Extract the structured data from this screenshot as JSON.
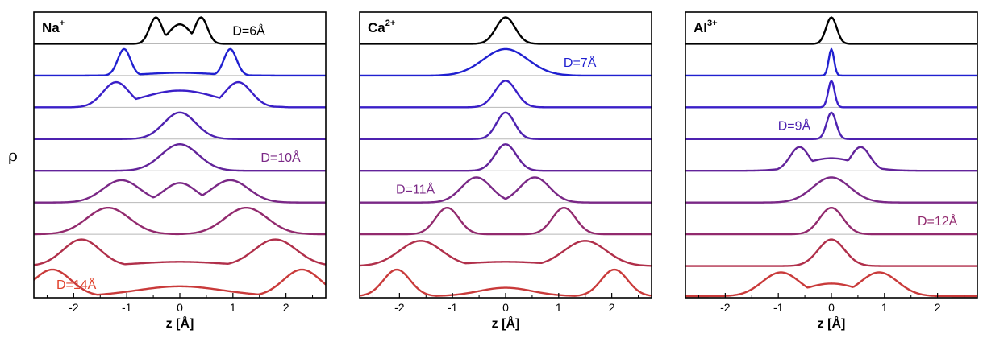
{
  "figure": {
    "ylabel": "ρ",
    "colors": [
      "#000000",
      "#2020d0",
      "#3a1fc8",
      "#4e22b0",
      "#62239a",
      "#7a2886",
      "#922a6e",
      "#b02f4a",
      "#c93a3a",
      "#e0402a"
    ]
  },
  "chart_data": [
    {
      "type": "line",
      "ion_base": "Na",
      "ion_sup": "+",
      "xlabel": "z [Å]",
      "xlim": [
        -2.75,
        2.75
      ],
      "xticks": [
        -2,
        -1,
        0,
        1,
        2
      ],
      "xtick_labels": [
        "-2",
        "-1",
        "0",
        "1",
        "2"
      ],
      "annotations": [
        {
          "text": "D=6Å",
          "row": 0,
          "x": 1.3,
          "color": "#000000"
        },
        {
          "text": "D=10Å",
          "row": 4,
          "x": 1.9,
          "color": "#7a2886"
        },
        {
          "text": "D=14Å",
          "row": 8,
          "x": -1.95,
          "color": "#e0402a"
        }
      ],
      "series": [
        {
          "peaks": [
            [
              -0.45,
              0.95,
              0.12
            ],
            [
              0.4,
              0.95,
              0.12
            ],
            [
              0,
              0.7,
              0.2
            ]
          ],
          "halfwidth": 0.8
        },
        {
          "peaks": [
            [
              -1.05,
              0.95,
              0.12
            ],
            [
              0.95,
              0.95,
              0.12
            ],
            [
              0,
              0.1,
              0.6
            ]
          ],
          "halfwidth": 1.6
        },
        {
          "peaks": [
            [
              -1.2,
              0.9,
              0.25
            ],
            [
              1.1,
              0.9,
              0.25
            ],
            [
              0,
              0.6,
              0.7
            ]
          ],
          "halfwidth": 1.9
        },
        {
          "peaks": [
            [
              0,
              0.95,
              0.3
            ]
          ],
          "halfwidth": 2.75
        },
        {
          "peaks": [
            [
              0,
              0.95,
              0.35
            ]
          ],
          "halfwidth": 2.75
        },
        {
          "peaks": [
            [
              -1.1,
              0.8,
              0.35
            ],
            [
              0,
              0.7,
              0.3
            ],
            [
              0.95,
              0.8,
              0.35
            ]
          ],
          "halfwidth": 2.75
        },
        {
          "peaks": [
            [
              -1.35,
              0.95,
              0.4
            ],
            [
              1.25,
              0.95,
              0.4
            ]
          ],
          "halfwidth": 2.75
        },
        {
          "peaks": [
            [
              -1.85,
              0.95,
              0.35
            ],
            [
              1.8,
              0.95,
              0.4
            ],
            [
              0,
              0.15,
              0.8
            ]
          ],
          "halfwidth": 2.75
        },
        {
          "peaks": [
            [
              -2.4,
              0.95,
              0.35
            ],
            [
              2.3,
              0.95,
              0.35
            ],
            [
              0,
              0.35,
              0.8
            ]
          ],
          "halfwidth": 2.75
        }
      ]
    },
    {
      "type": "line",
      "ion_base": "Ca",
      "ion_sup": "2+",
      "xlabel": "z [Å]",
      "xlim": [
        -2.75,
        2.75
      ],
      "xticks": [
        -2,
        -1,
        0,
        1,
        2
      ],
      "xtick_labels": [
        "-2",
        "-1",
        "0",
        "1",
        "2"
      ],
      "annotations": [
        {
          "text": "D=7Å",
          "row": 1,
          "x": 1.4,
          "color": "#2020d0"
        },
        {
          "text": "D=11Å",
          "row": 5,
          "x": -1.7,
          "color": "#7a2886"
        }
      ],
      "series": [
        {
          "peaks": [
            [
              0,
              0.95,
              0.18
            ]
          ],
          "halfwidth": 0.6
        },
        {
          "peaks": [
            [
              0,
              0.95,
              0.42
            ]
          ],
          "halfwidth": 1.2
        },
        {
          "peaks": [
            [
              0,
              0.95,
              0.2
            ]
          ],
          "halfwidth": 2.75
        },
        {
          "peaks": [
            [
              0,
              0.95,
              0.17
            ]
          ],
          "halfwidth": 2.75
        },
        {
          "peaks": [
            [
              0,
              0.95,
              0.2
            ]
          ],
          "halfwidth": 2.75
        },
        {
          "peaks": [
            [
              -0.55,
              0.9,
              0.28
            ],
            [
              0.55,
              0.9,
              0.28
            ]
          ],
          "halfwidth": 2.75
        },
        {
          "peaks": [
            [
              -1.1,
              0.95,
              0.22
            ],
            [
              1.1,
              0.95,
              0.22
            ]
          ],
          "halfwidth": 2.75
        },
        {
          "peaks": [
            [
              -1.6,
              0.9,
              0.4
            ],
            [
              1.5,
              0.9,
              0.4
            ],
            [
              0,
              0.15,
              0.8
            ]
          ],
          "halfwidth": 2.75
        },
        {
          "peaks": [
            [
              -2.05,
              0.95,
              0.25
            ],
            [
              2.05,
              0.95,
              0.25
            ],
            [
              0,
              0.3,
              0.5
            ]
          ],
          "halfwidth": 2.75
        }
      ]
    },
    {
      "type": "line",
      "ion_base": "Al",
      "ion_sup": "3+",
      "xlabel": "z [Å]",
      "xlim": [
        -2.75,
        2.75
      ],
      "xticks": [
        -2,
        -1,
        0,
        1,
        2
      ],
      "xtick_labels": [
        "-2",
        "-1",
        "0",
        "1",
        "2"
      ],
      "annotations": [
        {
          "text": "D=9Å",
          "row": 3,
          "x": -0.7,
          "color": "#4e22b0"
        },
        {
          "text": "D=12Å",
          "row": 6,
          "x": 2.0,
          "color": "#922a6e"
        }
      ],
      "series": [
        {
          "peaks": [
            [
              0,
              0.95,
              0.1
            ]
          ],
          "halfwidth": 0.4
        },
        {
          "peaks": [
            [
              0,
              0.95,
              0.05
            ]
          ],
          "halfwidth": 2.75
        },
        {
          "peaks": [
            [
              0,
              0.95,
              0.06
            ]
          ],
          "halfwidth": 2.75
        },
        {
          "peaks": [
            [
              0,
              0.95,
              0.09
            ]
          ],
          "halfwidth": 2.75
        },
        {
          "peaks": [
            [
              -0.6,
              0.85,
              0.18
            ],
            [
              0.55,
              0.85,
              0.18
            ],
            [
              0,
              0.45,
              0.5
            ]
          ],
          "halfwidth": 2.75
        },
        {
          "peaks": [
            [
              0,
              0.9,
              0.35
            ]
          ],
          "halfwidth": 2.75
        },
        {
          "peaks": [
            [
              0,
              0.95,
              0.22
            ]
          ],
          "halfwidth": 2.75
        },
        {
          "peaks": [
            [
              0,
              0.95,
              0.25
            ]
          ],
          "halfwidth": 2.75
        },
        {
          "peaks": [
            [
              -0.95,
              0.85,
              0.35
            ],
            [
              0.9,
              0.85,
              0.35
            ],
            [
              0,
              0.45,
              0.5
            ]
          ],
          "halfwidth": 2.75
        }
      ]
    }
  ]
}
